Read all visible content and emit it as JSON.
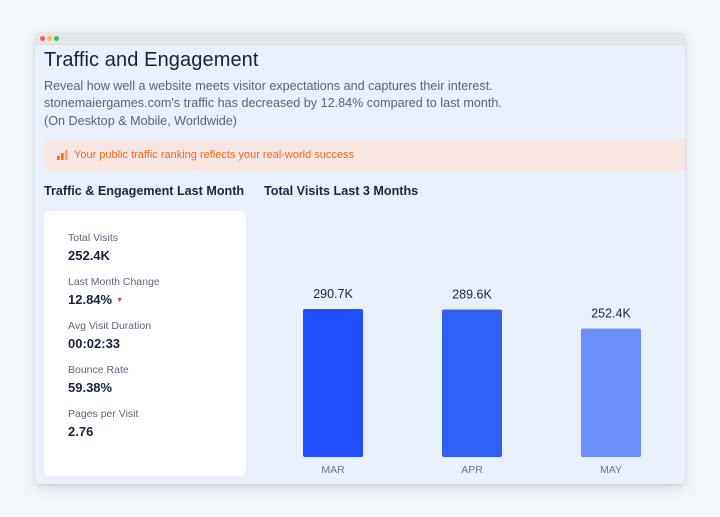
{
  "page": {
    "title": "Traffic and Engagement",
    "description": [
      "Reveal how well a website meets visitor expectations and captures their interest.",
      "stonemaiergames.com's traffic has decreased by 12.84% compared to last month.",
      "(On Desktop & Mobile, Worldwide)"
    ]
  },
  "banner": {
    "icon": "bar-chart-icon",
    "text": "Your public traffic ranking reflects your real-world success",
    "color": "#f06a1b"
  },
  "sections": {
    "engagement_title": "Traffic & Engagement Last Month",
    "visits_title": "Total Visits Last 3 Months"
  },
  "stats": [
    {
      "label": "Total Visits",
      "value": "252.4K"
    },
    {
      "label": "Last Month Change",
      "value": "12.84%",
      "trend": "down"
    },
    {
      "label": "Avg Visit Duration",
      "value": "00:02:33"
    },
    {
      "label": "Bounce Rate",
      "value": "59.38%"
    },
    {
      "label": "Pages per Visit",
      "value": "2.76"
    }
  ],
  "colors": {
    "accent": "#1f4fff",
    "trend_down": "#ee3a4f"
  },
  "chart_data": {
    "type": "bar",
    "title": "Total Visits Last 3 Months",
    "categories": [
      "MAR",
      "APR",
      "MAY"
    ],
    "values": [
      290.7,
      289.6,
      252.4
    ],
    "data_labels": [
      "290.7K",
      "289.6K",
      "252.4K"
    ],
    "bar_colors": [
      "#1f4fff",
      "#2f62f4",
      "#6a8ff8"
    ],
    "ylim": [
      0,
      290.7
    ],
    "grid": false
  }
}
